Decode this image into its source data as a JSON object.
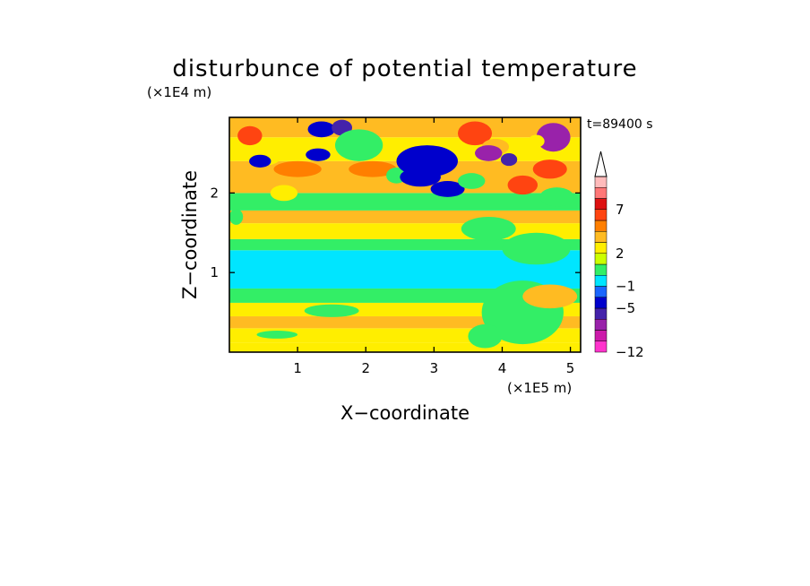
{
  "chart_data": {
    "type": "heatmap",
    "title": "disturbunce of potential temperature",
    "xlabel": "X−coordinate",
    "ylabel": "Z−coordinate",
    "x_unit": "(×1E5 m)",
    "y_unit": "(×1E4 m)",
    "time_label": "t=89400 s",
    "xlim": [
      0,
      5.15
    ],
    "ylim": [
      0,
      2.95
    ],
    "x_ticks": [
      1,
      2,
      3,
      4,
      5
    ],
    "y_ticks": [
      1,
      2
    ],
    "x_tick_labels": [
      "1",
      "2",
      "3",
      "4",
      "5"
    ],
    "y_tick_labels": [
      "1",
      "2"
    ],
    "grid": false,
    "colorbar": {
      "placement": "right",
      "extend": "max",
      "colors": [
        "#ff33cc",
        "#cc1aaa",
        "#9922aa",
        "#4422aa",
        "#0000cc",
        "#1a66ff",
        "#00e5ff",
        "#33ee66",
        "#ccff00",
        "#ffee00",
        "#ffbb22",
        "#ff7f00",
        "#ff4411",
        "#dd1111",
        "#ff7777",
        "#ffbbbb"
      ],
      "tick_labels": [
        "−12",
        "−5",
        "−1",
        "2",
        "7"
      ],
      "tick_levels": [
        0,
        4,
        6,
        9,
        13
      ]
    },
    "bands": [
      {
        "z": [
          0.0,
          0.12
        ],
        "value": 2.5
      },
      {
        "z": [
          0.12,
          0.3
        ],
        "value": 2.0
      },
      {
        "z": [
          0.3,
          0.45
        ],
        "value": 3.5
      },
      {
        "z": [
          0.45,
          0.62
        ],
        "value": 2.5
      },
      {
        "z": [
          0.62,
          0.8
        ],
        "value": 0.0
      },
      {
        "z": [
          0.8,
          1.28
        ],
        "value": -0.5
      },
      {
        "z": [
          1.28,
          1.42
        ],
        "value": 0.0
      },
      {
        "z": [
          1.42,
          1.62
        ],
        "value": 2.0
      },
      {
        "z": [
          1.62,
          1.78
        ],
        "value": 3.5
      },
      {
        "z": [
          1.78,
          2.0
        ],
        "value": 0.0
      },
      {
        "z": [
          2.0,
          2.4
        ],
        "value": 4.5
      },
      {
        "z": [
          2.4,
          2.7
        ],
        "value": 2.5
      },
      {
        "z": [
          2.7,
          2.95
        ],
        "value": 4.0
      }
    ],
    "features": [
      {
        "x": 0.3,
        "z": 2.72,
        "rx": 0.18,
        "rz": 0.12,
        "value": 7
      },
      {
        "x": 0.55,
        "z": 2.45,
        "rx": 0.2,
        "rz": 0.1,
        "value": 2
      },
      {
        "x": 0.45,
        "z": 2.4,
        "rx": 0.16,
        "rz": 0.08,
        "value": -3
      },
      {
        "x": 1.35,
        "z": 2.8,
        "rx": 0.2,
        "rz": 0.1,
        "value": -3
      },
      {
        "x": 1.65,
        "z": 2.82,
        "rx": 0.15,
        "rz": 0.1,
        "value": -5
      },
      {
        "x": 1.9,
        "z": 2.6,
        "rx": 0.35,
        "rz": 0.2,
        "value": 0
      },
      {
        "x": 1.3,
        "z": 2.48,
        "rx": 0.18,
        "rz": 0.08,
        "value": -4
      },
      {
        "x": 2.1,
        "z": 2.3,
        "rx": 0.35,
        "rz": 0.1,
        "value": 6
      },
      {
        "x": 1.0,
        "z": 2.3,
        "rx": 0.35,
        "rz": 0.1,
        "value": 6
      },
      {
        "x": 2.45,
        "z": 2.22,
        "rx": 0.15,
        "rz": 0.1,
        "value": 0
      },
      {
        "x": 2.9,
        "z": 2.4,
        "rx": 0.45,
        "rz": 0.2,
        "value": -3
      },
      {
        "x": 2.8,
        "z": 2.2,
        "rx": 0.3,
        "rz": 0.12,
        "value": -4
      },
      {
        "x": 3.2,
        "z": 2.05,
        "rx": 0.25,
        "rz": 0.1,
        "value": -3
      },
      {
        "x": 3.55,
        "z": 2.15,
        "rx": 0.2,
        "rz": 0.1,
        "value": 0
      },
      {
        "x": 3.6,
        "z": 2.75,
        "rx": 0.25,
        "rz": 0.15,
        "value": 7
      },
      {
        "x": 3.9,
        "z": 2.58,
        "rx": 0.2,
        "rz": 0.1,
        "value": 4
      },
      {
        "x": 3.8,
        "z": 2.5,
        "rx": 0.2,
        "rz": 0.1,
        "value": -8
      },
      {
        "x": 4.1,
        "z": 2.42,
        "rx": 0.12,
        "rz": 0.08,
        "value": -5
      },
      {
        "x": 4.3,
        "z": 2.1,
        "rx": 0.22,
        "rz": 0.12,
        "value": 7
      },
      {
        "x": 4.7,
        "z": 2.3,
        "rx": 0.25,
        "rz": 0.12,
        "value": 7
      },
      {
        "x": 4.75,
        "z": 2.7,
        "rx": 0.25,
        "rz": 0.18,
        "value": -8
      },
      {
        "x": 4.5,
        "z": 2.65,
        "rx": 0.12,
        "rz": 0.08,
        "value": 2
      },
      {
        "x": 4.8,
        "z": 1.95,
        "rx": 0.25,
        "rz": 0.12,
        "value": 0
      },
      {
        "x": 0.8,
        "z": 2.0,
        "rx": 0.2,
        "rz": 0.1,
        "value": 2
      },
      {
        "x": 3.8,
        "z": 1.55,
        "rx": 0.4,
        "rz": 0.15,
        "value": 0
      },
      {
        "x": 4.5,
        "z": 1.3,
        "rx": 0.5,
        "rz": 0.2,
        "value": 0
      },
      {
        "x": 0.1,
        "z": 1.7,
        "rx": 0.1,
        "rz": 0.1,
        "value": 0
      },
      {
        "x": 4.3,
        "z": 0.5,
        "rx": 0.6,
        "rz": 0.4,
        "value": 0
      },
      {
        "x": 3.75,
        "z": 0.2,
        "rx": 0.25,
        "rz": 0.15,
        "value": 0
      },
      {
        "x": 4.7,
        "z": 0.7,
        "rx": 0.4,
        "rz": 0.15,
        "value": 3
      },
      {
        "x": 0.7,
        "z": 0.22,
        "rx": 0.3,
        "rz": 0.05,
        "value": 0
      },
      {
        "x": 1.5,
        "z": 0.52,
        "rx": 0.4,
        "rz": 0.08,
        "value": 0
      }
    ]
  }
}
